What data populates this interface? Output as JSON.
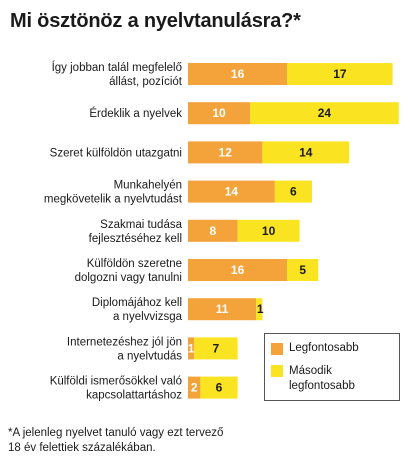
{
  "title": "Mi ösztönöz a nyelvtanulásra?*",
  "colors": {
    "primary": "#F4A33B",
    "secondary": "#FAE421"
  },
  "legend": {
    "primary_label": "Legfontosabb",
    "secondary_label": [
      "Második",
      "legfontosabb"
    ]
  },
  "footnote": [
    "*A jelenleg nyelvet tanuló vagy ezt tervező",
    "18 év felettiek százalékában."
  ],
  "chart_data": {
    "type": "bar",
    "stacked": true,
    "orientation": "horizontal",
    "categories": [
      [
        "Így jobban talál megfelelő",
        "állást, pozíciót"
      ],
      [
        "Érdeklik a nyelvek"
      ],
      [
        "Szeret külföldön utazgatni"
      ],
      [
        "Munkahelyén",
        "megkövetelik a nyelvtudást"
      ],
      [
        "Szakmai tudása",
        "fejlesztéséhez kell"
      ],
      [
        "Külföldön szeretne",
        "dolgozni vagy tanulni"
      ],
      [
        "Diplomájához kell",
        "a nyelvvizsga"
      ],
      [
        "Internetezéshez jól jön",
        "a nyelvtudás"
      ],
      [
        "Külföldi ismerősökkel való",
        "kapcsolattartáshoz"
      ]
    ],
    "series": [
      {
        "name": "Legfontosabb",
        "values": [
          16,
          10,
          12,
          14,
          8,
          16,
          11,
          1,
          2
        ]
      },
      {
        "name": "Második legfontosabb",
        "values": [
          17,
          24,
          14,
          6,
          10,
          5,
          1,
          7,
          6
        ]
      }
    ],
    "xlim": [
      0,
      34
    ]
  }
}
